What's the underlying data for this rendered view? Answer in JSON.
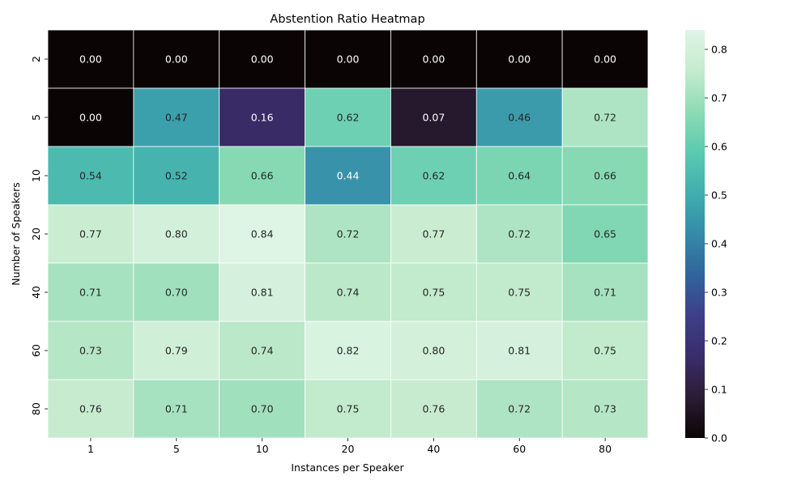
{
  "chart_data": {
    "type": "heatmap",
    "title": "Abstention Ratio Heatmap",
    "xlabel": "Instances per Speaker",
    "ylabel": "Number of Speakers",
    "x": [
      "1",
      "5",
      "10",
      "20",
      "40",
      "60",
      "80"
    ],
    "y": [
      "2",
      "5",
      "10",
      "20",
      "40",
      "60",
      "80"
    ],
    "values": [
      [
        0.0,
        0.0,
        0.0,
        0.0,
        0.0,
        0.0,
        0.0
      ],
      [
        0.0,
        0.47,
        0.16,
        0.62,
        0.07,
        0.46,
        0.72
      ],
      [
        0.54,
        0.52,
        0.66,
        0.44,
        0.62,
        0.64,
        0.66
      ],
      [
        0.77,
        0.8,
        0.84,
        0.72,
        0.77,
        0.72,
        0.65
      ],
      [
        0.71,
        0.7,
        0.81,
        0.74,
        0.75,
        0.75,
        0.71
      ],
      [
        0.73,
        0.79,
        0.74,
        0.82,
        0.8,
        0.81,
        0.75
      ],
      [
        0.76,
        0.71,
        0.7,
        0.75,
        0.76,
        0.72,
        0.73
      ]
    ],
    "colorbar": {
      "range": [
        0,
        0.84
      ],
      "ticks": [
        "0.0",
        "0.1",
        "0.2",
        "0.3",
        "0.4",
        "0.5",
        "0.6",
        "0.7",
        "0.8"
      ],
      "tick_values": [
        0,
        0.1,
        0.2,
        0.3,
        0.4,
        0.5,
        0.6,
        0.7,
        0.8
      ],
      "colormap": "mako",
      "stops": [
        "#0b0405",
        "#2b1c35",
        "#3a2d6b",
        "#3e3f88",
        "#31649c",
        "#358aa8",
        "#41aeaf",
        "#5bcab0",
        "#8edbb5",
        "#c6ebce",
        "#def5e5"
      ]
    },
    "grid": false,
    "legend": "none"
  }
}
